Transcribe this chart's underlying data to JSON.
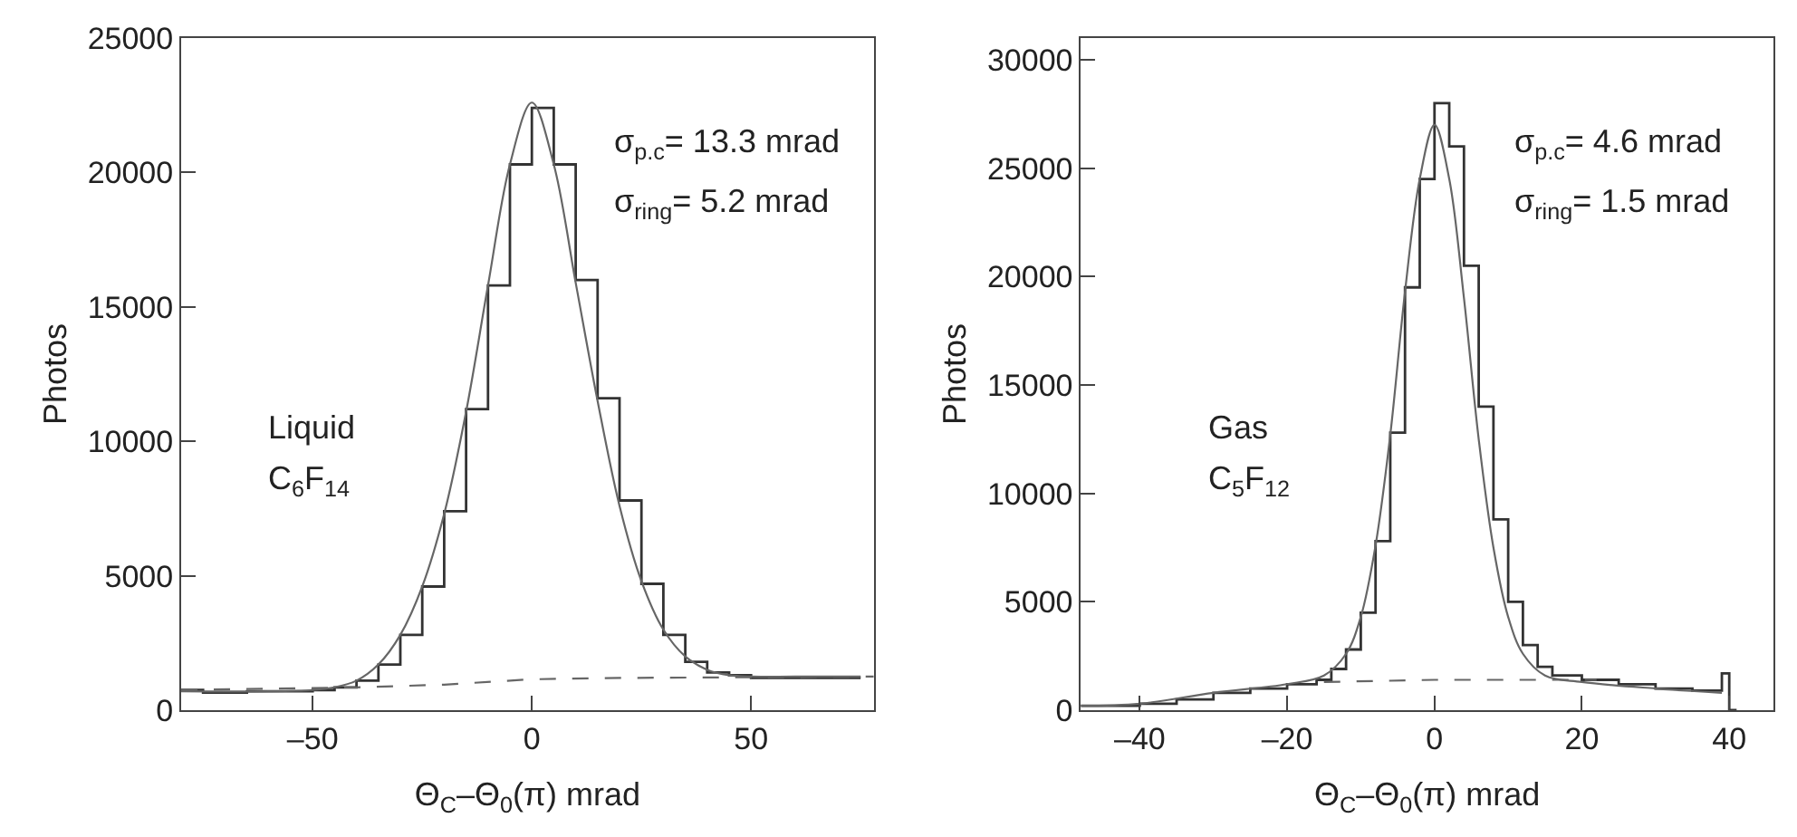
{
  "chart_data": [
    {
      "type": "line",
      "xlabel": "Θ$_{C}$–Θ$_{0}$(π) mrad",
      "ylabel": "Photos",
      "xlim": [
        -80,
        78
      ],
      "xticks": [
        {
          "value": -50,
          "label": "–50"
        },
        0,
        50
      ],
      "ylim": [
        0,
        25000
      ],
      "yticks": [
        0,
        5000,
        10000,
        15000,
        20000,
        25000
      ],
      "annotations": [
        "σ$_{p.c}$= 13.3 mrad",
        "σ$_{ring}$= 5.2 mrad",
        "Liquid",
        "C$_{6}$F$_{14}$"
      ],
      "series": [
        {
          "type": "step",
          "color": "#333333",
          "x": [
            -80,
            -75,
            -70,
            -65,
            -60,
            -55,
            -50,
            -45,
            -40,
            -35,
            -30,
            -25,
            -20,
            -15,
            -10,
            -5,
            0,
            5,
            10,
            15,
            20,
            25,
            30,
            35,
            40,
            45,
            50,
            55,
            60,
            65,
            70,
            75
          ],
          "values": [
            750,
            650,
            650,
            700,
            700,
            700,
            750,
            850,
            1100,
            1700,
            2800,
            4600,
            7400,
            11200,
            15800,
            20300,
            22400,
            20300,
            16000,
            11600,
            7800,
            4700,
            2800,
            1800,
            1400,
            1300,
            1200,
            1200,
            1200,
            1200,
            1200,
            1200
          ]
        },
        {
          "color": "#666666",
          "x": [
            -80,
            -60,
            -50,
            -45,
            -40,
            -35,
            -30,
            -25,
            -20,
            -15,
            -10,
            -5,
            0,
            5,
            10,
            15,
            20,
            25,
            30,
            35,
            40,
            45,
            50,
            60,
            75
          ],
          "values": [
            700,
            700,
            750,
            850,
            1100,
            1700,
            2800,
            4600,
            7300,
            11100,
            15800,
            20300,
            22600,
            20300,
            15900,
            11500,
            7600,
            4800,
            3000,
            2000,
            1500,
            1300,
            1250,
            1250,
            1250
          ]
        },
        {
          "line_style": "dashed",
          "color": "#666666",
          "x": [
            -80,
            -40,
            -20,
            0,
            20,
            78
          ],
          "values": [
            750,
            850,
            950,
            1150,
            1200,
            1250
          ]
        }
      ]
    },
    {
      "type": "line",
      "xlabel": "Θ$_{C}$–Θ$_{0}$(π) mrad",
      "ylabel": "Photos",
      "xlim": [
        -48,
        46
      ],
      "xticks": [
        {
          "value": -40,
          "label": "–40"
        },
        {
          "value": -20,
          "label": "–20"
        },
        0,
        20,
        40
      ],
      "ylim": [
        0,
        31000
      ],
      "yticks": [
        0,
        5000,
        10000,
        15000,
        20000,
        25000,
        30000
      ],
      "annotations": [
        "σ$_{p.c}$= 4.6 mrad",
        "σ$_{ring}$= 1.5 mrad",
        "Gas",
        "C$_{5}$F$_{12}$"
      ],
      "series": [
        {
          "type": "step",
          "color": "#333333",
          "x": [
            -48,
            -40,
            -35,
            -30,
            -25,
            -20,
            -16,
            -14,
            -12,
            -10,
            -8,
            -6,
            -4,
            -2,
            0,
            2,
            4,
            6,
            8,
            10,
            12,
            14,
            16,
            20,
            25,
            30,
            35,
            39,
            40,
            41
          ],
          "values": [
            200,
            300,
            500,
            800,
            1000,
            1200,
            1400,
            1900,
            2800,
            4500,
            7800,
            12800,
            19500,
            24500,
            28000,
            26000,
            20500,
            14000,
            8800,
            5000,
            3000,
            2000,
            1600,
            1400,
            1200,
            1000,
            900,
            1700,
            0,
            0
          ]
        },
        {
          "color": "#666666",
          "x": [
            -48,
            -40,
            -30,
            -20,
            -15,
            -12,
            -10,
            -8,
            -6,
            -4,
            -2,
            0,
            2,
            4,
            6,
            8,
            10,
            12,
            15,
            20,
            30,
            39
          ],
          "values": [
            200,
            300,
            800,
            1200,
            1600,
            2600,
            4300,
            7600,
            12700,
            19300,
            24500,
            27000,
            24500,
            19000,
            12500,
            7500,
            4300,
            2600,
            1600,
            1300,
            1000,
            800
          ]
        },
        {
          "line_style": "dashed",
          "color": "#666666",
          "x": [
            -15,
            0,
            22
          ],
          "values": [
            1300,
            1400,
            1400
          ]
        }
      ]
    }
  ]
}
